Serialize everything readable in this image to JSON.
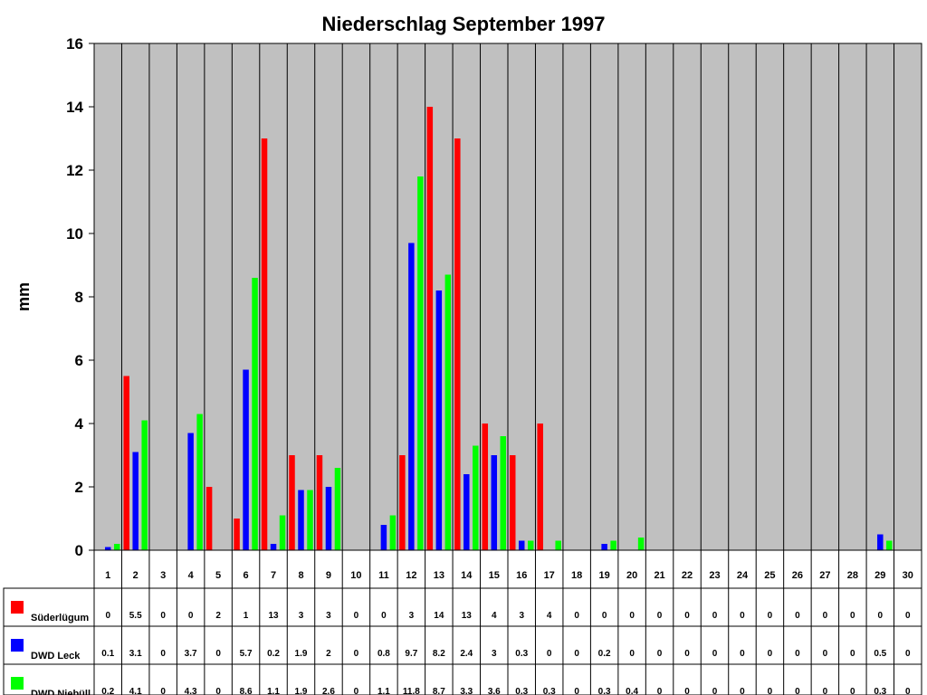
{
  "chart_data": {
    "type": "bar",
    "title": "Niederschlag September 1997",
    "xlabel": "",
    "ylabel": "mm",
    "ylim": [
      0,
      16
    ],
    "yticks": [
      0,
      2,
      4,
      6,
      8,
      10,
      12,
      14,
      16
    ],
    "grid": true,
    "plot_background": "#c0c0c0",
    "legend": "data-table",
    "categories": [
      "1",
      "2",
      "3",
      "4",
      "5",
      "6",
      "7",
      "8",
      "9",
      "10",
      "11",
      "12",
      "13",
      "14",
      "15",
      "16",
      "17",
      "18",
      "19",
      "20",
      "21",
      "22",
      "23",
      "24",
      "25",
      "26",
      "27",
      "28",
      "29",
      "30"
    ],
    "series": [
      {
        "name": "Süderlügum",
        "color": "#ff0000",
        "values": [
          0,
          5.5,
          0,
          0,
          2,
          1,
          13,
          3,
          3,
          0,
          0,
          3,
          14,
          13,
          4,
          3,
          4,
          0,
          0,
          0,
          0,
          0,
          0,
          0,
          0,
          0,
          0,
          0,
          0,
          0
        ]
      },
      {
        "name": "DWD Leck",
        "color": "#0000ff",
        "values": [
          0.1,
          3.1,
          0,
          3.7,
          0,
          5.7,
          0.2,
          1.9,
          2,
          0,
          0.8,
          9.7,
          8.2,
          2.4,
          3,
          0.3,
          0,
          0,
          0.2,
          0,
          0,
          0,
          0,
          0,
          0,
          0,
          0,
          0,
          0.5,
          0
        ]
      },
      {
        "name": "DWD Niebüll",
        "color": "#00ff00",
        "values": [
          0.2,
          4.1,
          0,
          4.3,
          0,
          8.6,
          1.1,
          1.9,
          2.6,
          0,
          1.1,
          11.8,
          8.7,
          3.3,
          3.6,
          0.3,
          0.3,
          0,
          0.3,
          0.4,
          0,
          0,
          0,
          0,
          0,
          0,
          0,
          0,
          0.3,
          0
        ]
      }
    ]
  }
}
